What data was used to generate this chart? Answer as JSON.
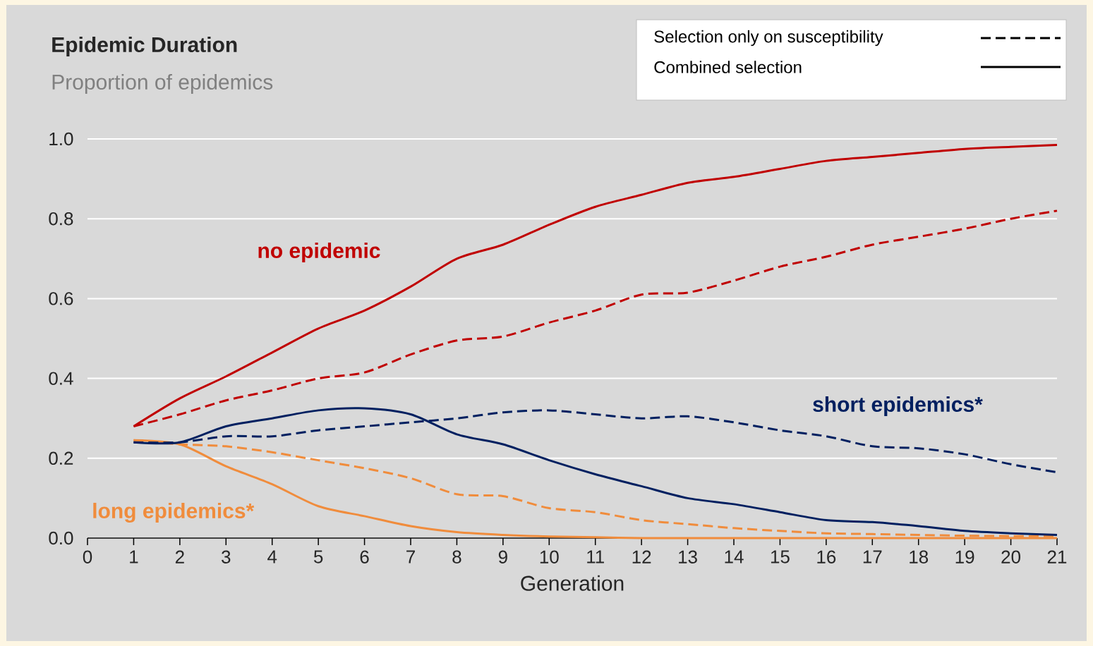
{
  "chart_data": {
    "type": "line",
    "title": "Epidemic Duration",
    "subtitle": "Proportion of epidemics",
    "xlabel": "Generation",
    "x": [
      1,
      2,
      3,
      4,
      5,
      6,
      7,
      8,
      9,
      10,
      11,
      12,
      13,
      14,
      15,
      16,
      17,
      18,
      19,
      20,
      21
    ],
    "series": [
      {
        "color": "#c00000",
        "line_style": "solid",
        "values": [
          0.28,
          0.35,
          0.405,
          0.465,
          0.525,
          0.57,
          0.63,
          0.7,
          0.735,
          0.785,
          0.83,
          0.86,
          0.89,
          0.905,
          0.925,
          0.945,
          0.955,
          0.965,
          0.975,
          0.98,
          0.985
        ]
      },
      {
        "color": "#c00000",
        "line_style": "dashed",
        "values": [
          0.28,
          0.31,
          0.345,
          0.37,
          0.4,
          0.415,
          0.46,
          0.495,
          0.505,
          0.54,
          0.57,
          0.61,
          0.615,
          0.645,
          0.68,
          0.705,
          0.735,
          0.755,
          0.775,
          0.8,
          0.82
        ]
      },
      {
        "color": "#002060",
        "line_style": "solid",
        "values": [
          0.24,
          0.24,
          0.28,
          0.3,
          0.32,
          0.325,
          0.31,
          0.26,
          0.235,
          0.195,
          0.16,
          0.13,
          0.1,
          0.085,
          0.065,
          0.045,
          0.04,
          0.03,
          0.018,
          0.012,
          0.008
        ]
      },
      {
        "color": "#002060",
        "line_style": "dashed",
        "values": [
          0.24,
          0.24,
          0.255,
          0.255,
          0.27,
          0.28,
          0.29,
          0.3,
          0.315,
          0.32,
          0.31,
          0.3,
          0.305,
          0.29,
          0.27,
          0.255,
          0.23,
          0.225,
          0.21,
          0.185,
          0.165
        ]
      },
      {
        "color": "#f08c3c",
        "line_style": "solid",
        "values": [
          0.245,
          0.235,
          0.18,
          0.135,
          0.08,
          0.055,
          0.03,
          0.015,
          0.008,
          0.004,
          0.002,
          0,
          0,
          0,
          0,
          0,
          0,
          0,
          0,
          0,
          0
        ]
      },
      {
        "color": "#f08c3c",
        "line_style": "dashed",
        "values": [
          0.245,
          0.235,
          0.23,
          0.215,
          0.195,
          0.175,
          0.15,
          0.11,
          0.105,
          0.075,
          0.065,
          0.045,
          0.035,
          0.025,
          0.018,
          0.012,
          0.01,
          0.008,
          0.006,
          0.005,
          0.005
        ]
      }
    ],
    "annotations": [
      "Selection only on susceptibility",
      "Combined selection",
      "no epidemic",
      "short epidemics*",
      "long epidemics*"
    ],
    "xlim": [
      0,
      21
    ],
    "xticks": [
      0,
      1,
      2,
      3,
      4,
      5,
      6,
      7,
      8,
      9,
      10,
      11,
      12,
      13,
      14,
      15,
      16,
      17,
      18,
      19,
      20,
      21
    ],
    "ylim": [
      0,
      1
    ],
    "yticks": [
      {
        "value": 0,
        "label": "0.0"
      },
      {
        "value": 0.2,
        "label": "0.2"
      },
      {
        "value": 0.4,
        "label": "0.4"
      },
      {
        "value": 0.6,
        "label": "0.6"
      },
      {
        "value": 0.8,
        "label": "0.8"
      },
      {
        "value": 1,
        "label": "1.0"
      }
    ],
    "grid": "y",
    "marker": "none"
  }
}
